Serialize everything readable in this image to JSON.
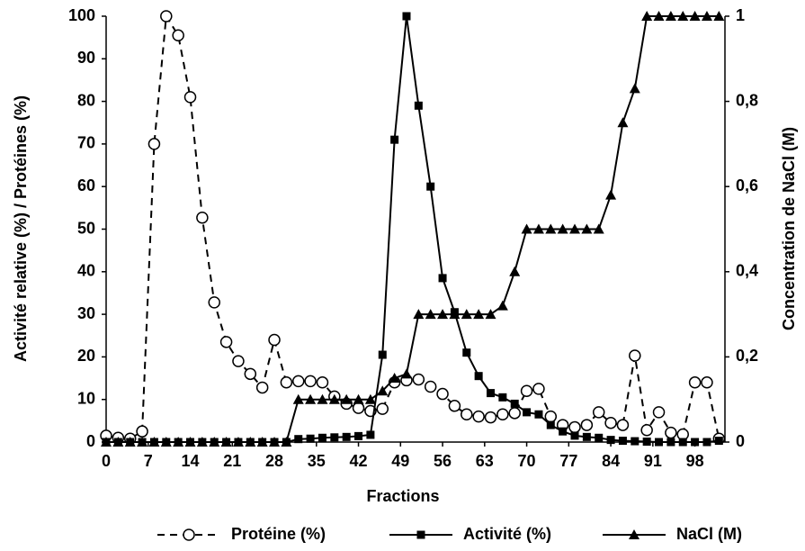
{
  "chart_data": {
    "type": "line",
    "x_label": "Fractions",
    "y_label": "Activité relative (%) / Protéines (%)",
    "y2_label": "Concentration de NaCl (M)",
    "x": [
      0,
      2,
      4,
      6,
      8,
      10,
      12,
      14,
      16,
      18,
      20,
      22,
      24,
      26,
      28,
      30,
      32,
      34,
      36,
      38,
      40,
      42,
      44,
      46,
      48,
      50,
      52,
      54,
      56,
      58,
      60,
      62,
      64,
      66,
      68,
      70,
      72,
      74,
      76,
      78,
      80,
      82,
      84,
      86,
      88,
      90,
      92,
      94,
      96,
      98,
      100,
      102
    ],
    "xlim": [
      0,
      103
    ],
    "xticks": [
      0,
      7,
      14,
      21,
      28,
      35,
      42,
      49,
      56,
      63,
      70,
      77,
      84,
      91,
      98
    ],
    "ylim": [
      0,
      100
    ],
    "yticks": [
      0,
      10,
      20,
      30,
      40,
      50,
      60,
      70,
      80,
      90,
      100
    ],
    "y2lim": [
      0,
      1
    ],
    "y2ticks": [
      0,
      {
        "value": 0.2,
        "label": "0,2"
      },
      {
        "value": 0.4,
        "label": "0,4"
      },
      {
        "value": 0.6,
        "label": "0,6"
      },
      {
        "value": 0.8,
        "label": "0,8"
      },
      1
    ],
    "series": [
      {
        "name": "Protéine (%)",
        "color": "#000000",
        "marker": "circle",
        "dashed": true,
        "values": [
          1.5,
          1,
          0.8,
          2.5,
          70,
          100,
          95.5,
          81,
          52.7,
          32.8,
          23.5,
          19,
          16,
          12.8,
          24,
          14,
          14.3,
          14.3,
          14,
          10.7,
          9,
          8,
          7.3,
          7.8,
          14,
          14.5,
          14.7,
          13,
          11.3,
          8.5,
          6.5,
          6,
          5.8,
          6.5,
          6.8,
          12,
          12.5,
          6,
          4,
          3.5,
          4,
          7,
          4.5,
          4,
          20.3,
          2.8,
          7,
          2.2,
          1.8,
          14,
          14,
          0.8
        ]
      },
      {
        "name": "Activité (%)",
        "color": "#000000",
        "marker": "square",
        "dashed": false,
        "values": [
          0,
          0,
          0,
          0,
          0,
          0,
          0,
          0,
          0,
          0,
          0,
          0,
          0,
          0,
          0,
          0,
          0.7,
          0.8,
          1,
          1.1,
          1.2,
          1.4,
          1.7,
          20.5,
          71,
          100,
          79,
          60,
          38.5,
          30.5,
          21,
          15.5,
          11.5,
          10.5,
          9,
          7,
          6.5,
          4,
          2.5,
          1.5,
          1.2,
          1,
          0.5,
          0.3,
          0.2,
          0.1,
          0,
          0,
          0,
          0,
          0,
          0.3
        ]
      },
      {
        "name": "NaCl (M)",
        "color": "#000000",
        "marker": "triangle",
        "dashed": false,
        "axis": "y2",
        "values": [
          0,
          0,
          0,
          0,
          0,
          0,
          0,
          0,
          0,
          0,
          0,
          0,
          0,
          0,
          0,
          0,
          0.1,
          0.1,
          0.1,
          0.1,
          0.1,
          0.1,
          0.1,
          0.12,
          0.15,
          0.16,
          0.3,
          0.3,
          0.3,
          0.3,
          0.3,
          0.3,
          0.3,
          0.32,
          0.4,
          0.5,
          0.5,
          0.5,
          0.5,
          0.5,
          0.5,
          0.5,
          0.58,
          0.75,
          0.83,
          1,
          1,
          1,
          1,
          1,
          1,
          1
        ]
      }
    ]
  }
}
